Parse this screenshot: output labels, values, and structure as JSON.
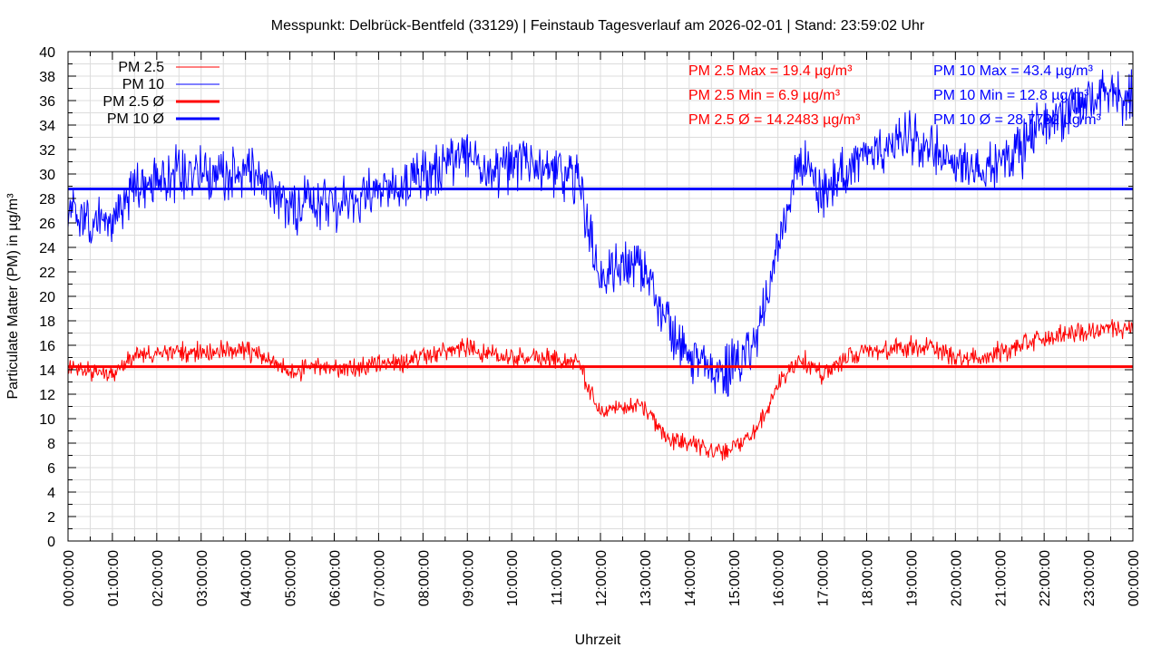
{
  "chart_data": {
    "type": "line",
    "title": "Messpunkt: Delbrück-Bentfeld (33129) | Feinstaub Tagesverlauf am 2026-02-01 | Stand: 23:59:02 Uhr",
    "xlabel": "Uhrzeit",
    "ylabel": "Particulate Matter (PM) in µg/m³",
    "ylim": [
      0,
      40
    ],
    "xlim_hours": [
      0,
      24
    ],
    "grid": true,
    "legend_position": "top-left",
    "yticks": [
      "0",
      "2",
      "4",
      "6",
      "8",
      "10",
      "12",
      "14",
      "16",
      "18",
      "20",
      "22",
      "24",
      "26",
      "28",
      "30",
      "32",
      "34",
      "36",
      "38",
      "40"
    ],
    "xticks": [
      "00:00:00",
      "01:00:00",
      "02:00:00",
      "03:00:00",
      "04:00:00",
      "05:00:00",
      "06:00:00",
      "07:00:00",
      "08:00:00",
      "09:00:00",
      "10:00:00",
      "11:00:00",
      "12:00:00",
      "13:00:00",
      "14:00:00",
      "15:00:00",
      "16:00:00",
      "17:00:00",
      "18:00:00",
      "19:00:00",
      "20:00:00",
      "21:00:00",
      "22:00:00",
      "23:00:00",
      "00:00:00"
    ],
    "x_step_hours": 0.5,
    "series": [
      {
        "name": "PM 2.5",
        "color": "#ff0000",
        "noise": 0.7,
        "values": [
          14,
          13.8,
          13.8,
          15,
          15.3,
          15.5,
          15.5,
          15.5,
          15.5,
          15,
          13.8,
          14.2,
          14.2,
          14.2,
          14.5,
          14.5,
          15.2,
          15.5,
          15.8,
          15.2,
          14.8,
          15,
          14.8,
          14.5,
          10.5,
          11,
          11,
          8.5,
          8,
          7.5,
          7.5,
          9,
          12.8,
          15,
          13.5,
          15,
          15.5,
          15.5,
          16,
          15.8,
          15,
          15,
          15.5,
          16,
          16.5,
          17,
          17,
          17.5,
          17.5
        ]
      },
      {
        "name": "PM 10",
        "color": "#0000ff",
        "noise": 1.8,
        "values": [
          26.5,
          26,
          26.5,
          29,
          29.5,
          30,
          30,
          30,
          30,
          29.5,
          27,
          28,
          27.5,
          28,
          28.5,
          29,
          30,
          31,
          31.5,
          30.5,
          30.5,
          31,
          30,
          29.5,
          21.5,
          22.5,
          22.5,
          18,
          15,
          14,
          14,
          16,
          24,
          31,
          28,
          30.5,
          31.5,
          32,
          33,
          32,
          30.5,
          30.5,
          31,
          32,
          34,
          35,
          36,
          37,
          36
        ]
      }
    ],
    "averages": [
      {
        "name": "PM 2.5 Ø",
        "color": "#ff0000",
        "value": 14.2483
      },
      {
        "name": "PM 10 Ø",
        "color": "#0000ff",
        "value": 28.7782
      }
    ],
    "annotations": {
      "pm25": [
        "PM 2.5 Max = 19.4 µg/m³",
        "PM 2.5 Min = 6.9 µg/m³",
        "PM 2.5 Ø = 14.2483 µg/m³"
      ],
      "pm10": [
        "PM 10 Max = 43.4 µg/m³",
        "PM 10 Min = 12.8 µg/m³",
        "PM 10 Ø = 28.7782 µg/m³"
      ]
    }
  }
}
